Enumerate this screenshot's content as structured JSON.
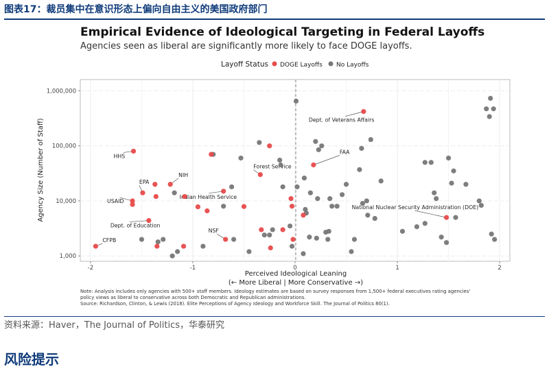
{
  "report": {
    "figure_label": "图表17：",
    "figure_title": "裁员集中在意识形态上偏向自由主义的美国政府部门",
    "source": "资料来源：Haver，The Journal of Politics，华泰研究",
    "risk_heading": "风险提示"
  },
  "chart_data": {
    "type": "scatter",
    "title": "Empirical Evidence of Ideological Targeting in Federal Layoffs",
    "subtitle": "Agencies seen as liberal are significantly more likely to face DOGE layoffs.",
    "legend_title": "Layoff Status",
    "legend_position": "top",
    "xlabel": "Perceived Ideological Leaning",
    "xlabel_sub": "(← More Liberal | More Conservative →)",
    "ylabel": "Agency Size (Number of Staff)",
    "y_scale": "log",
    "xlim": [
      -2.1,
      2.1
    ],
    "ylim": [
      800,
      1600000
    ],
    "x_ticks": [
      -2,
      -1,
      0,
      1,
      2
    ],
    "x_tick_labels": [
      "-2",
      "-1",
      "0",
      "1",
      "2"
    ],
    "y_ticks": [
      1000,
      10000,
      100000,
      1000000
    ],
    "y_tick_labels": [
      "1,000",
      "10,000",
      "100,000",
      "1,000,000"
    ],
    "grid": true,
    "reference_line_x": 0,
    "colors": {
      "doge": "#e84a4a",
      "none": "#777777",
      "panel_border": "#bbbbbb",
      "grid": "#ececec",
      "header": "#0f3b7a"
    },
    "series": [
      {
        "name": "DOGE Layoffs",
        "color": "#e84a4a",
        "points": [
          [
            -1.95,
            1500
          ],
          [
            -1.58,
            80000
          ],
          [
            -1.49,
            14000
          ],
          [
            -1.43,
            4400
          ],
          [
            -1.59,
            10000
          ],
          [
            -1.59,
            8600
          ],
          [
            -1.37,
            20000
          ],
          [
            -1.36,
            12000
          ],
          [
            -1.35,
            1500
          ],
          [
            -1.22,
            20000
          ],
          [
            -1.09,
            1500
          ],
          [
            -1.08,
            12000
          ],
          [
            -0.95,
            7800
          ],
          [
            -0.86,
            6600
          ],
          [
            -0.82,
            70000
          ],
          [
            -0.7,
            15000
          ],
          [
            -0.68,
            2000
          ],
          [
            -0.5,
            7900
          ],
          [
            -0.34,
            30000
          ],
          [
            -0.33,
            3000
          ],
          [
            -0.25,
            100000
          ],
          [
            -0.24,
            1400
          ],
          [
            -0.12,
            3000
          ],
          [
            -0.04,
            11000
          ],
          [
            -0.03,
            8000
          ],
          [
            -0.02,
            2000
          ],
          [
            0.08,
            5500
          ],
          [
            0.18,
            45000
          ],
          [
            0.67,
            420000
          ],
          [
            1.48,
            5000
          ]
        ]
      },
      {
        "name": "No Layoffs",
        "color": "#777777",
        "points": [
          [
            -1.5,
            2000
          ],
          [
            -1.34,
            1800
          ],
          [
            -1.29,
            2000
          ],
          [
            -1.2,
            1000
          ],
          [
            -1.18,
            14000
          ],
          [
            -1.15,
            1200
          ],
          [
            -0.9,
            1500
          ],
          [
            -0.8,
            70000
          ],
          [
            -0.7,
            8000
          ],
          [
            -0.62,
            18000
          ],
          [
            -0.6,
            2000
          ],
          [
            -0.53,
            60000
          ],
          [
            -0.45,
            1200
          ],
          [
            -0.35,
            115000
          ],
          [
            -0.3,
            2400
          ],
          [
            -0.25,
            2400
          ],
          [
            -0.22,
            3000
          ],
          [
            -0.15,
            55000
          ],
          [
            -0.14,
            45000
          ],
          [
            -0.12,
            18000
          ],
          [
            -0.05,
            3500
          ],
          [
            -0.03,
            1500
          ],
          [
            0.01,
            650000
          ],
          [
            0.02,
            18000
          ],
          [
            0.08,
            1100
          ],
          [
            0.09,
            26000
          ],
          [
            0.1,
            7000
          ],
          [
            0.11,
            6000
          ],
          [
            0.14,
            2200
          ],
          [
            0.15,
            14000
          ],
          [
            0.2,
            120000
          ],
          [
            0.21,
            2100
          ],
          [
            0.22,
            11000
          ],
          [
            0.23,
            85000
          ],
          [
            0.26,
            100000
          ],
          [
            0.3,
            2700
          ],
          [
            0.32,
            2000
          ],
          [
            0.33,
            2800
          ],
          [
            0.34,
            11000
          ],
          [
            0.36,
            8000
          ],
          [
            0.41,
            8000
          ],
          [
            0.46,
            13000
          ],
          [
            0.5,
            20000
          ],
          [
            0.55,
            1200
          ],
          [
            0.58,
            2000
          ],
          [
            0.63,
            37000
          ],
          [
            0.65,
            90000
          ],
          [
            0.66,
            9000
          ],
          [
            0.7,
            10000
          ],
          [
            0.71,
            5500
          ],
          [
            0.74,
            130000
          ],
          [
            0.78,
            4800
          ],
          [
            0.84,
            23000
          ],
          [
            1.05,
            2800
          ],
          [
            1.19,
            3400
          ],
          [
            1.27,
            3900
          ],
          [
            1.27,
            50000
          ],
          [
            1.33,
            50000
          ],
          [
            1.36,
            14000
          ],
          [
            1.38,
            11000
          ],
          [
            1.43,
            2200
          ],
          [
            1.48,
            1750
          ],
          [
            1.5,
            60000
          ],
          [
            1.53,
            21000
          ],
          [
            1.55,
            35000
          ],
          [
            1.57,
            5000
          ],
          [
            1.67,
            20000
          ],
          [
            1.8,
            10000
          ],
          [
            1.82,
            8300
          ],
          [
            1.87,
            470000
          ],
          [
            1.9,
            340000
          ],
          [
            1.91,
            730000
          ],
          [
            1.92,
            2500
          ],
          [
            1.94,
            470000
          ],
          [
            1.95,
            2000
          ]
        ]
      }
    ],
    "annotations": [
      {
        "text": "Dept. of Veterans Affairs",
        "x": 0.67,
        "y": 420000
      },
      {
        "text": "HHS",
        "x": -1.58,
        "y": 80000
      },
      {
        "text": "FAA",
        "x": 0.18,
        "y": 45000
      },
      {
        "text": "Forest Service",
        "x": -0.34,
        "y": 30000
      },
      {
        "text": "EPA",
        "x": -1.49,
        "y": 14000
      },
      {
        "text": "NIH",
        "x": -1.22,
        "y": 20000
      },
      {
        "text": "Indian Health Service",
        "x": -0.7,
        "y": 15000
      },
      {
        "text": "USAID",
        "x": -1.59,
        "y": 10000
      },
      {
        "text": "National Nuclear Security Administration (DOE)",
        "x": 1.48,
        "y": 5000
      },
      {
        "text": "Dept. of Education",
        "x": -1.43,
        "y": 4400
      },
      {
        "text": "NSF",
        "x": -0.68,
        "y": 2000
      },
      {
        "text": "CFPB",
        "x": -1.95,
        "y": 1500
      }
    ],
    "notes": [
      "Note: Analysis includes only agencies with 500+ staff members. Ideology estimates are based on survey responses from 1,500+ federal executives rating agencies'",
      "policy views as liberal to conservative across both Democratic and Republican administrations.",
      "Source: Richardson, Clinton, & Lewis (2018). Elite Perceptions of Agency Ideology and Workforce Skill. The Journal of Politics 80(1)."
    ]
  }
}
